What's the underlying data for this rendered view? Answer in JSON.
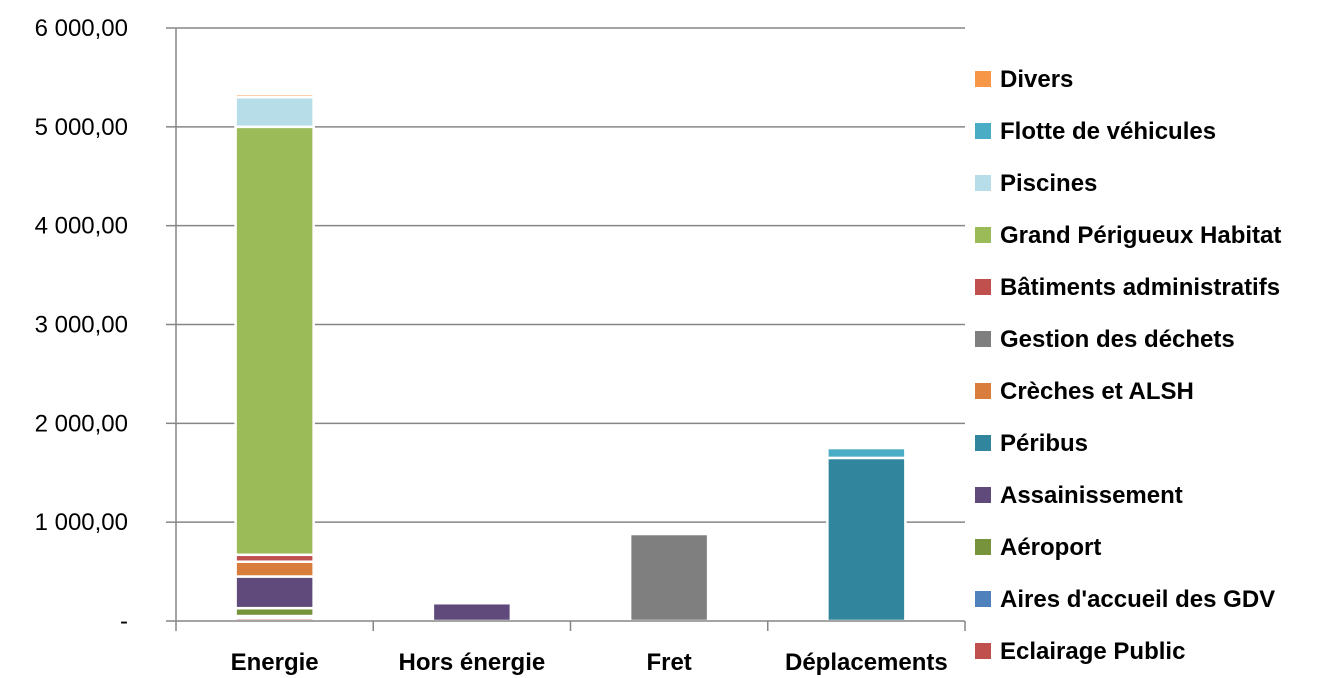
{
  "chart_data": {
    "type": "bar",
    "stacked": true,
    "categories": [
      "Energie",
      "Hors énergie",
      "Fret",
      "Déplacements"
    ],
    "y_ticks": [
      "-",
      "1 000,00",
      "2 000,00",
      "3 000,00",
      "4 000,00",
      "5 000,00",
      "6 000,00"
    ],
    "ylim": [
      0,
      6000
    ],
    "grid": true,
    "legend_position": "right",
    "series": [
      {
        "name": "Eclairage Public",
        "color": "#C0504D",
        "values": [
          30,
          0,
          0,
          0
        ]
      },
      {
        "name": "Aires d'accueil des GDV",
        "color": "#4F81BD",
        "values": [
          20,
          0,
          0,
          0
        ]
      },
      {
        "name": "Aéroport",
        "color": "#77933C",
        "values": [
          80,
          0,
          0,
          0
        ]
      },
      {
        "name": "Assainissement",
        "color": "#604A7B",
        "values": [
          320,
          180,
          0,
          0
        ]
      },
      {
        "name": "Péribus",
        "color": "#31859C",
        "values": [
          0,
          0,
          0,
          1650
        ]
      },
      {
        "name": "Crèches et ALSH",
        "color": "#D97D3C",
        "values": [
          150,
          0,
          0,
          0
        ]
      },
      {
        "name": "Gestion des déchets",
        "color": "#7F7F7F",
        "values": [
          0,
          0,
          880,
          0
        ]
      },
      {
        "name": "Bâtiments administratifs",
        "color": "#C0504D",
        "values": [
          70,
          0,
          0,
          0
        ]
      },
      {
        "name": "Grand Périgueux Habitat",
        "color": "#9BBB59",
        "values": [
          4330,
          0,
          0,
          0
        ]
      },
      {
        "name": "Piscines",
        "color": "#B7DDE8",
        "values": [
          300,
          0,
          0,
          0
        ]
      },
      {
        "name": "Flotte de véhicules",
        "color": "#4BACC6",
        "values": [
          0,
          0,
          0,
          100
        ]
      },
      {
        "name": "Divers",
        "color": "#F79646",
        "values": [
          30,
          0,
          0,
          0
        ]
      }
    ]
  }
}
